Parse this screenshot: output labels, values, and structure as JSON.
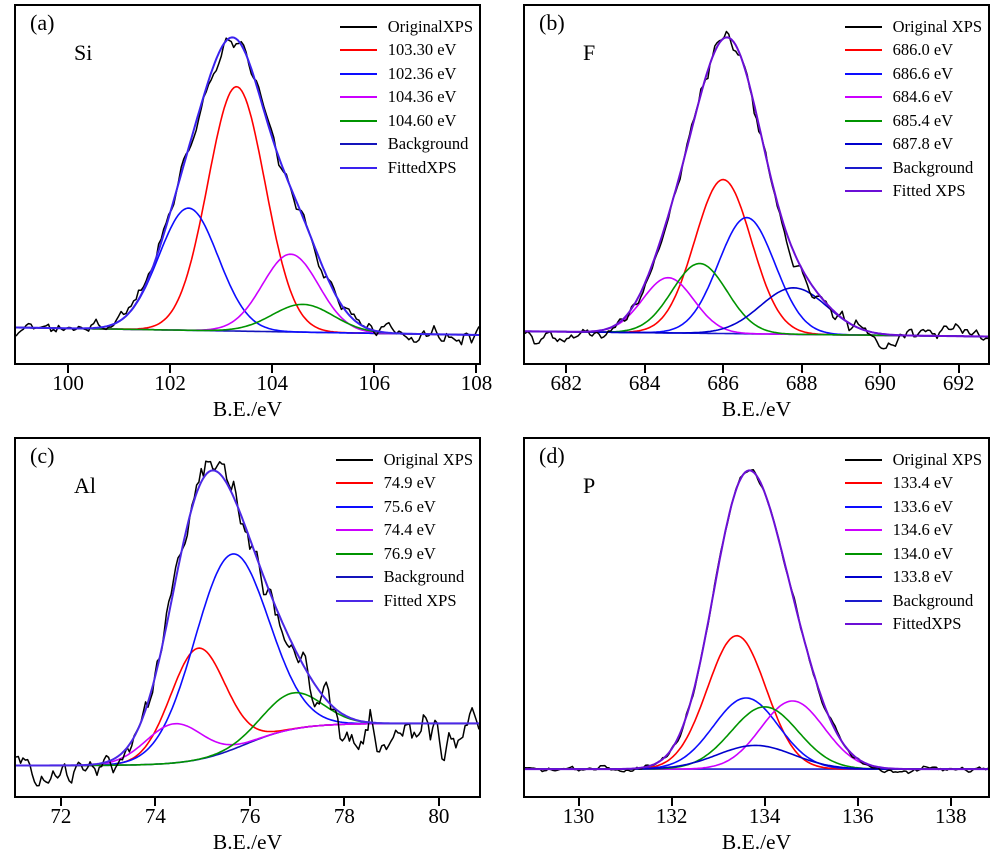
{
  "chart_data": [
    {
      "id": "a",
      "type": "line",
      "panel_label": "(a)",
      "element_label": "Si",
      "xlabel": "B.E./eV",
      "xlim": [
        98.98,
        108.05
      ],
      "x_ticks": [
        100,
        102,
        104,
        106,
        108
      ],
      "ylabel": "",
      "grid": false,
      "legend_position": "top-right",
      "colors": {
        "original": "#000000",
        "fitted": "#3a22ef",
        "background": "#1414bb"
      },
      "legend": [
        {
          "label": "OriginalXPS",
          "color": "#000000"
        },
        {
          "label": "103.30 eV",
          "color": "#ff0000"
        },
        {
          "label": "102.36 eV",
          "color": "#0d0dff"
        },
        {
          "label": "104.36 eV",
          "color": "#cc00ff"
        },
        {
          "label": "104.60 eV",
          "color": "#009400"
        },
        {
          "label": "Background",
          "color": "#1414bb"
        },
        {
          "label": "FittedXPS",
          "color": "#3a22ef"
        }
      ],
      "components": [
        {
          "center": 103.3,
          "height": 0.88,
          "sigma": 0.56,
          "color": "#ff0000"
        },
        {
          "center": 102.36,
          "height": 0.44,
          "sigma": 0.58,
          "color": "#0d0dff"
        },
        {
          "center": 104.36,
          "height": 0.28,
          "sigma": 0.55,
          "color": "#cc00ff"
        },
        {
          "center": 104.6,
          "height": 0.1,
          "sigma": 0.6,
          "color": "#009400"
        }
      ],
      "background": {
        "type": "flat",
        "left": 0.045,
        "right": 0.018
      },
      "noise": {
        "seed": 11,
        "n": 185,
        "left": 0.032,
        "right": 0.036,
        "low": 0.02
      }
    },
    {
      "id": "b",
      "type": "line",
      "panel_label": "(b)",
      "element_label": "F",
      "xlabel": "B.E./eV",
      "xlim": [
        680.95,
        692.75
      ],
      "x_ticks": [
        682,
        684,
        686,
        688,
        690,
        692
      ],
      "ylabel": "",
      "grid": false,
      "legend_position": "top-right",
      "colors": {
        "original": "#000000",
        "fitted": "#6b0fd6",
        "background": "#1a1acc"
      },
      "legend": [
        {
          "label": "Original XPS",
          "color": "#000000"
        },
        {
          "label": "686.0 eV",
          "color": "#ff0000"
        },
        {
          "label": "686.6 eV",
          "color": "#0d0dff"
        },
        {
          "label": "684.6 eV",
          "color": "#cc00ff"
        },
        {
          "label": "685.4 eV",
          "color": "#009400"
        },
        {
          "label": "687.8 eV",
          "color": "#0000cd"
        },
        {
          "label": "Background",
          "color": "#1a1acc"
        },
        {
          "label": "Fitted XPS",
          "color": "#6b0fd6"
        }
      ],
      "components": [
        {
          "center": 686.0,
          "height": 0.53,
          "sigma": 0.72,
          "color": "#ff0000"
        },
        {
          "center": 686.6,
          "height": 0.4,
          "sigma": 0.72,
          "color": "#0d0dff"
        },
        {
          "center": 684.6,
          "height": 0.19,
          "sigma": 0.65,
          "color": "#cc00ff"
        },
        {
          "center": 685.4,
          "height": 0.24,
          "sigma": 0.7,
          "color": "#009400"
        },
        {
          "center": 687.8,
          "height": 0.16,
          "sigma": 0.85,
          "color": "#0000cd"
        }
      ],
      "background": {
        "type": "flat",
        "left": 0.03,
        "right": 0.012
      },
      "noise": {
        "seed": 29,
        "n": 200,
        "left": 0.03,
        "right": 0.038,
        "low": 0.022
      }
    },
    {
      "id": "c",
      "type": "line",
      "panel_label": "(c)",
      "element_label": "Al",
      "xlabel": "B.E./eV",
      "xlim": [
        71.05,
        80.85
      ],
      "x_ticks": [
        72,
        74,
        76,
        78,
        80
      ],
      "ylabel": "",
      "grid": false,
      "legend_position": "top-right",
      "colors": {
        "original": "#000000",
        "fitted": "#4b28e6",
        "background": "#1414bb"
      },
      "legend": [
        {
          "label": "Original XPS",
          "color": "#000000"
        },
        {
          "label": "74.9 eV",
          "color": "#ff0000"
        },
        {
          "label": "75.6 eV",
          "color": "#0d0dff"
        },
        {
          "label": "74.4 eV",
          "color": "#cc00ff"
        },
        {
          "label": "76.9 eV",
          "color": "#009400"
        },
        {
          "label": "Background",
          "color": "#1414bb"
        },
        {
          "label": "Fitted XPS",
          "color": "#4b28e6"
        }
      ],
      "components": [
        {
          "center": 74.9,
          "height": 0.37,
          "sigma": 0.58,
          "color": "#ff0000"
        },
        {
          "center": 75.6,
          "height": 0.65,
          "sigma": 0.78,
          "color": "#0d0dff"
        },
        {
          "center": 74.4,
          "height": 0.13,
          "sigma": 0.6,
          "color": "#cc00ff"
        },
        {
          "center": 76.9,
          "height": 0.12,
          "sigma": 0.62,
          "color": "#009400"
        }
      ],
      "background": {
        "type": "sigmoid",
        "left": 0.025,
        "right": 0.165,
        "center": 75.9,
        "width": 0.55
      },
      "noise": {
        "seed": 47,
        "n": 200,
        "left": 0.055,
        "right": 0.1,
        "low": 0.045
      }
    },
    {
      "id": "d",
      "type": "line",
      "panel_label": "(d)",
      "element_label": "P",
      "xlabel": "B.E./eV",
      "xlim": [
        128.85,
        138.8
      ],
      "x_ticks": [
        130,
        132,
        134,
        136,
        138
      ],
      "ylabel": "",
      "grid": false,
      "legend_position": "top-right",
      "colors": {
        "original": "#000000",
        "fitted": "#6b0fd6",
        "background": "#1a1acc"
      },
      "legend": [
        {
          "label": "Original XPS",
          "color": "#000000"
        },
        {
          "label": "133.4 eV",
          "color": "#ff0000"
        },
        {
          "label": "133.6 eV",
          "color": "#0d0dff"
        },
        {
          "label": "134.6 eV",
          "color": "#cc00ff"
        },
        {
          "label": "134.0 eV",
          "color": "#009400"
        },
        {
          "label": "133.8 eV",
          "color": "#0000cd"
        },
        {
          "label": "Background",
          "color": "#1a1acc"
        },
        {
          "label": "FittedXPS",
          "color": "#6b0fd6"
        }
      ],
      "components": [
        {
          "center": 133.4,
          "height": 0.45,
          "sigma": 0.63,
          "color": "#ff0000"
        },
        {
          "center": 133.6,
          "height": 0.24,
          "sigma": 0.7,
          "color": "#0d0dff"
        },
        {
          "center": 134.6,
          "height": 0.23,
          "sigma": 0.68,
          "color": "#cc00ff"
        },
        {
          "center": 134.0,
          "height": 0.21,
          "sigma": 0.72,
          "color": "#009400"
        },
        {
          "center": 133.8,
          "height": 0.08,
          "sigma": 0.82,
          "color": "#0000cd"
        }
      ],
      "background": {
        "type": "flat",
        "left": 0.013,
        "right": 0.013
      },
      "noise": {
        "seed": 3,
        "n": 215,
        "left": 0.011,
        "right": 0.013,
        "low": 0.005
      }
    }
  ]
}
